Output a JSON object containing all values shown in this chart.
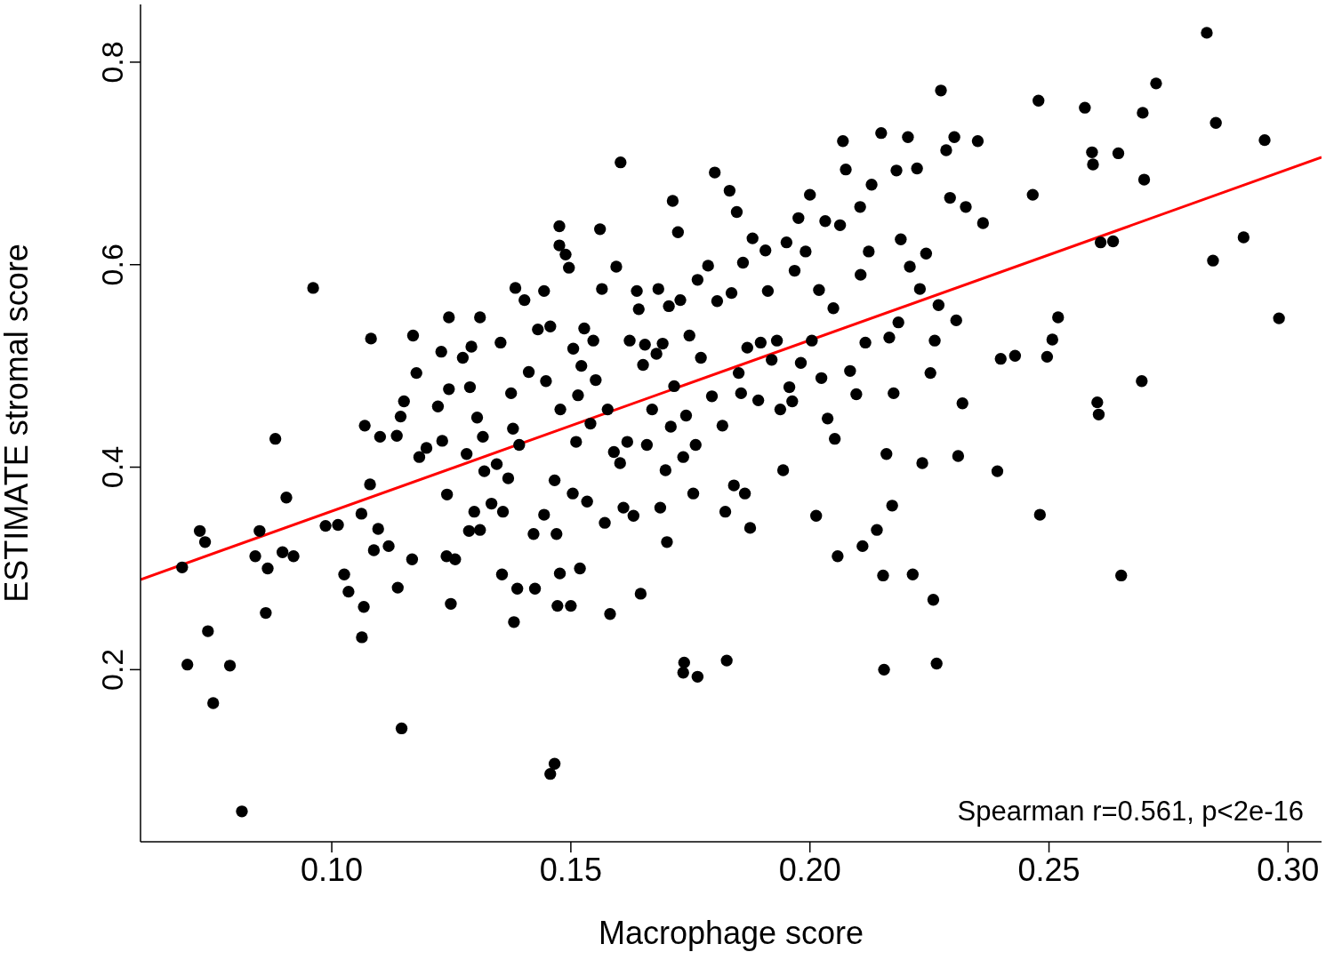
{
  "chart_data": {
    "type": "scatter",
    "xlabel": "Macrophage score",
    "ylabel": "ESTIMATE stromal score",
    "xlim": [
      0.06,
      0.307
    ],
    "ylim": [
      0.03,
      0.857
    ],
    "xticks": [
      {
        "value": 0.1,
        "label": "0.10"
      },
      {
        "value": 0.15,
        "label": "0.15"
      },
      {
        "value": 0.2,
        "label": "0.20"
      },
      {
        "value": 0.25,
        "label": "0.25"
      },
      {
        "value": 0.3,
        "label": "0.30"
      }
    ],
    "yticks": [
      0.2,
      0.4,
      0.6,
      0.8
    ],
    "grid": false,
    "annotations": [
      "Spearman r=0.561, p<2e-16"
    ],
    "series": [
      {
        "color": "#000000",
        "marker": "circle",
        "x": [
          0.0687,
          0.0698,
          0.0724,
          0.0735,
          0.0741,
          0.0752,
          0.0787,
          0.0812,
          0.084,
          0.0849,
          0.0862,
          0.0866,
          0.0882,
          0.0897,
          0.0905,
          0.092,
          0.0961,
          0.0987,
          0.1013,
          0.1026,
          0.1035,
          0.1062,
          0.1063,
          0.1067,
          0.1069,
          0.108,
          0.1082,
          0.1088,
          0.1097,
          0.1101,
          0.1119,
          0.1136,
          0.1138,
          0.1144,
          0.1146,
          0.1151,
          0.1168,
          0.117,
          0.1177,
          0.1183,
          0.1198,
          0.1222,
          0.1229,
          0.1231,
          0.124,
          0.1241,
          0.1245,
          0.1245,
          0.1249,
          0.1258,
          0.1274,
          0.1282,
          0.1287,
          0.1289,
          0.1292,
          0.1298,
          0.1304,
          0.131,
          0.131,
          0.1316,
          0.1319,
          0.1334,
          0.1345,
          0.1353,
          0.1356,
          0.1358,
          0.1369,
          0.1375,
          0.1379,
          0.1381,
          0.1384,
          0.1388,
          0.1392,
          0.1403,
          0.1412,
          0.1422,
          0.1425,
          0.1431,
          0.1444,
          0.1444,
          0.1448,
          0.1457,
          0.1457,
          0.1466,
          0.1466,
          0.147,
          0.1472,
          0.1476,
          0.1476,
          0.1477,
          0.1478,
          0.1489,
          0.1496,
          0.15,
          0.1504,
          0.1505,
          0.1511,
          0.1515,
          0.1519,
          0.1522,
          0.1528,
          0.1534,
          0.1541,
          0.1547,
          0.1552,
          0.1561,
          0.1565,
          0.1571,
          0.1577,
          0.1582,
          0.159,
          0.1595,
          0.1603,
          0.1604,
          0.161,
          0.1618,
          0.1623,
          0.1631,
          0.1638,
          0.1642,
          0.1646,
          0.1651,
          0.1655,
          0.1659,
          0.167,
          0.1679,
          0.1683,
          0.1687,
          0.1692,
          0.1698,
          0.1701,
          0.1705,
          0.1709,
          0.1713,
          0.1716,
          0.1724,
          0.1729,
          0.1735,
          0.1737,
          0.1735,
          0.1741,
          0.1748,
          0.1756,
          0.1761,
          0.1765,
          0.1765,
          0.1772,
          0.1787,
          0.1795,
          0.1801,
          0.1806,
          0.1817,
          0.1823,
          0.1826,
          0.1832,
          0.1836,
          0.1841,
          0.1847,
          0.1851,
          0.1856,
          0.186,
          0.1864,
          0.1869,
          0.1875,
          0.188,
          0.1892,
          0.1897,
          0.1907,
          0.1912,
          0.192,
          0.1931,
          0.1938,
          0.1944,
          0.1951,
          0.1957,
          0.1963,
          0.1968,
          0.1976,
          0.1981,
          0.1991,
          0.2,
          0.2004,
          0.2013,
          0.2019,
          0.2024,
          0.2032,
          0.2037,
          0.2049,
          0.2052,
          0.2058,
          0.2063,
          0.2069,
          0.2075,
          0.2084,
          0.2097,
          0.2105,
          0.2106,
          0.211,
          0.2116,
          0.2123,
          0.2129,
          0.214,
          0.2149,
          0.2153,
          0.2155,
          0.216,
          0.2166,
          0.2172,
          0.2175,
          0.2181,
          0.2185,
          0.219,
          0.2205,
          0.2209,
          0.2215,
          0.2224,
          0.223,
          0.2235,
          0.2243,
          0.2252,
          0.2258,
          0.2261,
          0.2265,
          0.2269,
          0.2274,
          0.2285,
          0.2293,
          0.2302,
          0.2306,
          0.231,
          0.2319,
          0.2326,
          0.2351,
          0.2362,
          0.2392,
          0.2399,
          0.2429,
          0.2466,
          0.2478,
          0.2481,
          0.2496,
          0.2507,
          0.2519,
          0.2575,
          0.259,
          0.2592,
          0.2601,
          0.2604,
          0.2608,
          0.2634,
          0.2645,
          0.2651,
          0.2694,
          0.2696,
          0.2699,
          0.2724,
          0.283,
          0.2843,
          0.2849,
          0.2907,
          0.2951,
          0.2981
        ],
        "values": [
          0.301,
          0.205,
          0.337,
          0.326,
          0.238,
          0.167,
          0.204,
          0.06,
          0.312,
          0.337,
          0.256,
          0.3,
          0.428,
          0.316,
          0.37,
          0.312,
          0.577,
          0.342,
          0.343,
          0.294,
          0.277,
          0.354,
          0.232,
          0.262,
          0.441,
          0.383,
          0.527,
          0.318,
          0.339,
          0.43,
          0.322,
          0.431,
          0.281,
          0.45,
          0.142,
          0.465,
          0.309,
          0.53,
          0.493,
          0.41,
          0.419,
          0.46,
          0.514,
          0.426,
          0.312,
          0.373,
          0.548,
          0.477,
          0.265,
          0.309,
          0.508,
          0.413,
          0.337,
          0.479,
          0.519,
          0.356,
          0.449,
          0.338,
          0.548,
          0.43,
          0.396,
          0.364,
          0.403,
          0.523,
          0.294,
          0.356,
          0.389,
          0.473,
          0.438,
          0.247,
          0.577,
          0.28,
          0.422,
          0.565,
          0.494,
          0.334,
          0.28,
          0.536,
          0.574,
          0.353,
          0.485,
          0.539,
          0.097,
          0.107,
          0.387,
          0.334,
          0.263,
          0.638,
          0.619,
          0.295,
          0.457,
          0.61,
          0.597,
          0.263,
          0.374,
          0.517,
          0.425,
          0.471,
          0.3,
          0.5,
          0.537,
          0.366,
          0.443,
          0.525,
          0.486,
          0.635,
          0.576,
          0.345,
          0.457,
          0.255,
          0.415,
          0.598,
          0.404,
          0.701,
          0.36,
          0.425,
          0.525,
          0.352,
          0.574,
          0.556,
          0.275,
          0.501,
          0.521,
          0.422,
          0.457,
          0.512,
          0.576,
          0.36,
          0.522,
          0.397,
          0.326,
          0.559,
          0.44,
          0.663,
          0.48,
          0.632,
          0.565,
          0.41,
          0.207,
          0.197,
          0.451,
          0.53,
          0.374,
          0.422,
          0.193,
          0.585,
          0.508,
          0.599,
          0.47,
          0.691,
          0.564,
          0.441,
          0.356,
          0.209,
          0.673,
          0.572,
          0.382,
          0.652,
          0.493,
          0.473,
          0.602,
          0.374,
          0.518,
          0.34,
          0.626,
          0.466,
          0.523,
          0.614,
          0.574,
          0.506,
          0.525,
          0.457,
          0.397,
          0.622,
          0.479,
          0.465,
          0.594,
          0.646,
          0.503,
          0.613,
          0.669,
          0.525,
          0.352,
          0.575,
          0.488,
          0.643,
          0.448,
          0.557,
          0.428,
          0.312,
          0.639,
          0.722,
          0.694,
          0.495,
          0.472,
          0.657,
          0.59,
          0.322,
          0.523,
          0.613,
          0.679,
          0.338,
          0.73,
          0.293,
          0.2,
          0.413,
          0.528,
          0.362,
          0.473,
          0.693,
          0.543,
          0.625,
          0.726,
          0.598,
          0.294,
          0.695,
          0.576,
          0.404,
          0.611,
          0.493,
          0.269,
          0.525,
          0.206,
          0.56,
          0.772,
          0.713,
          0.666,
          0.726,
          0.545,
          0.411,
          0.463,
          0.657,
          0.722,
          0.641,
          0.396,
          0.507,
          0.51,
          0.669,
          0.762,
          0.353,
          0.509,
          0.526,
          0.548,
          0.755,
          0.711,
          0.699,
          0.464,
          0.452,
          0.622,
          0.623,
          0.71,
          0.293,
          0.485,
          0.75,
          0.684,
          0.779,
          0.829,
          0.604,
          0.74,
          0.627,
          0.723,
          0.547
        ]
      },
      {
        "type": "line",
        "color": "#ff0000",
        "x": [
          0.06,
          0.307
        ],
        "values": [
          0.289,
          0.706
        ]
      }
    ]
  }
}
